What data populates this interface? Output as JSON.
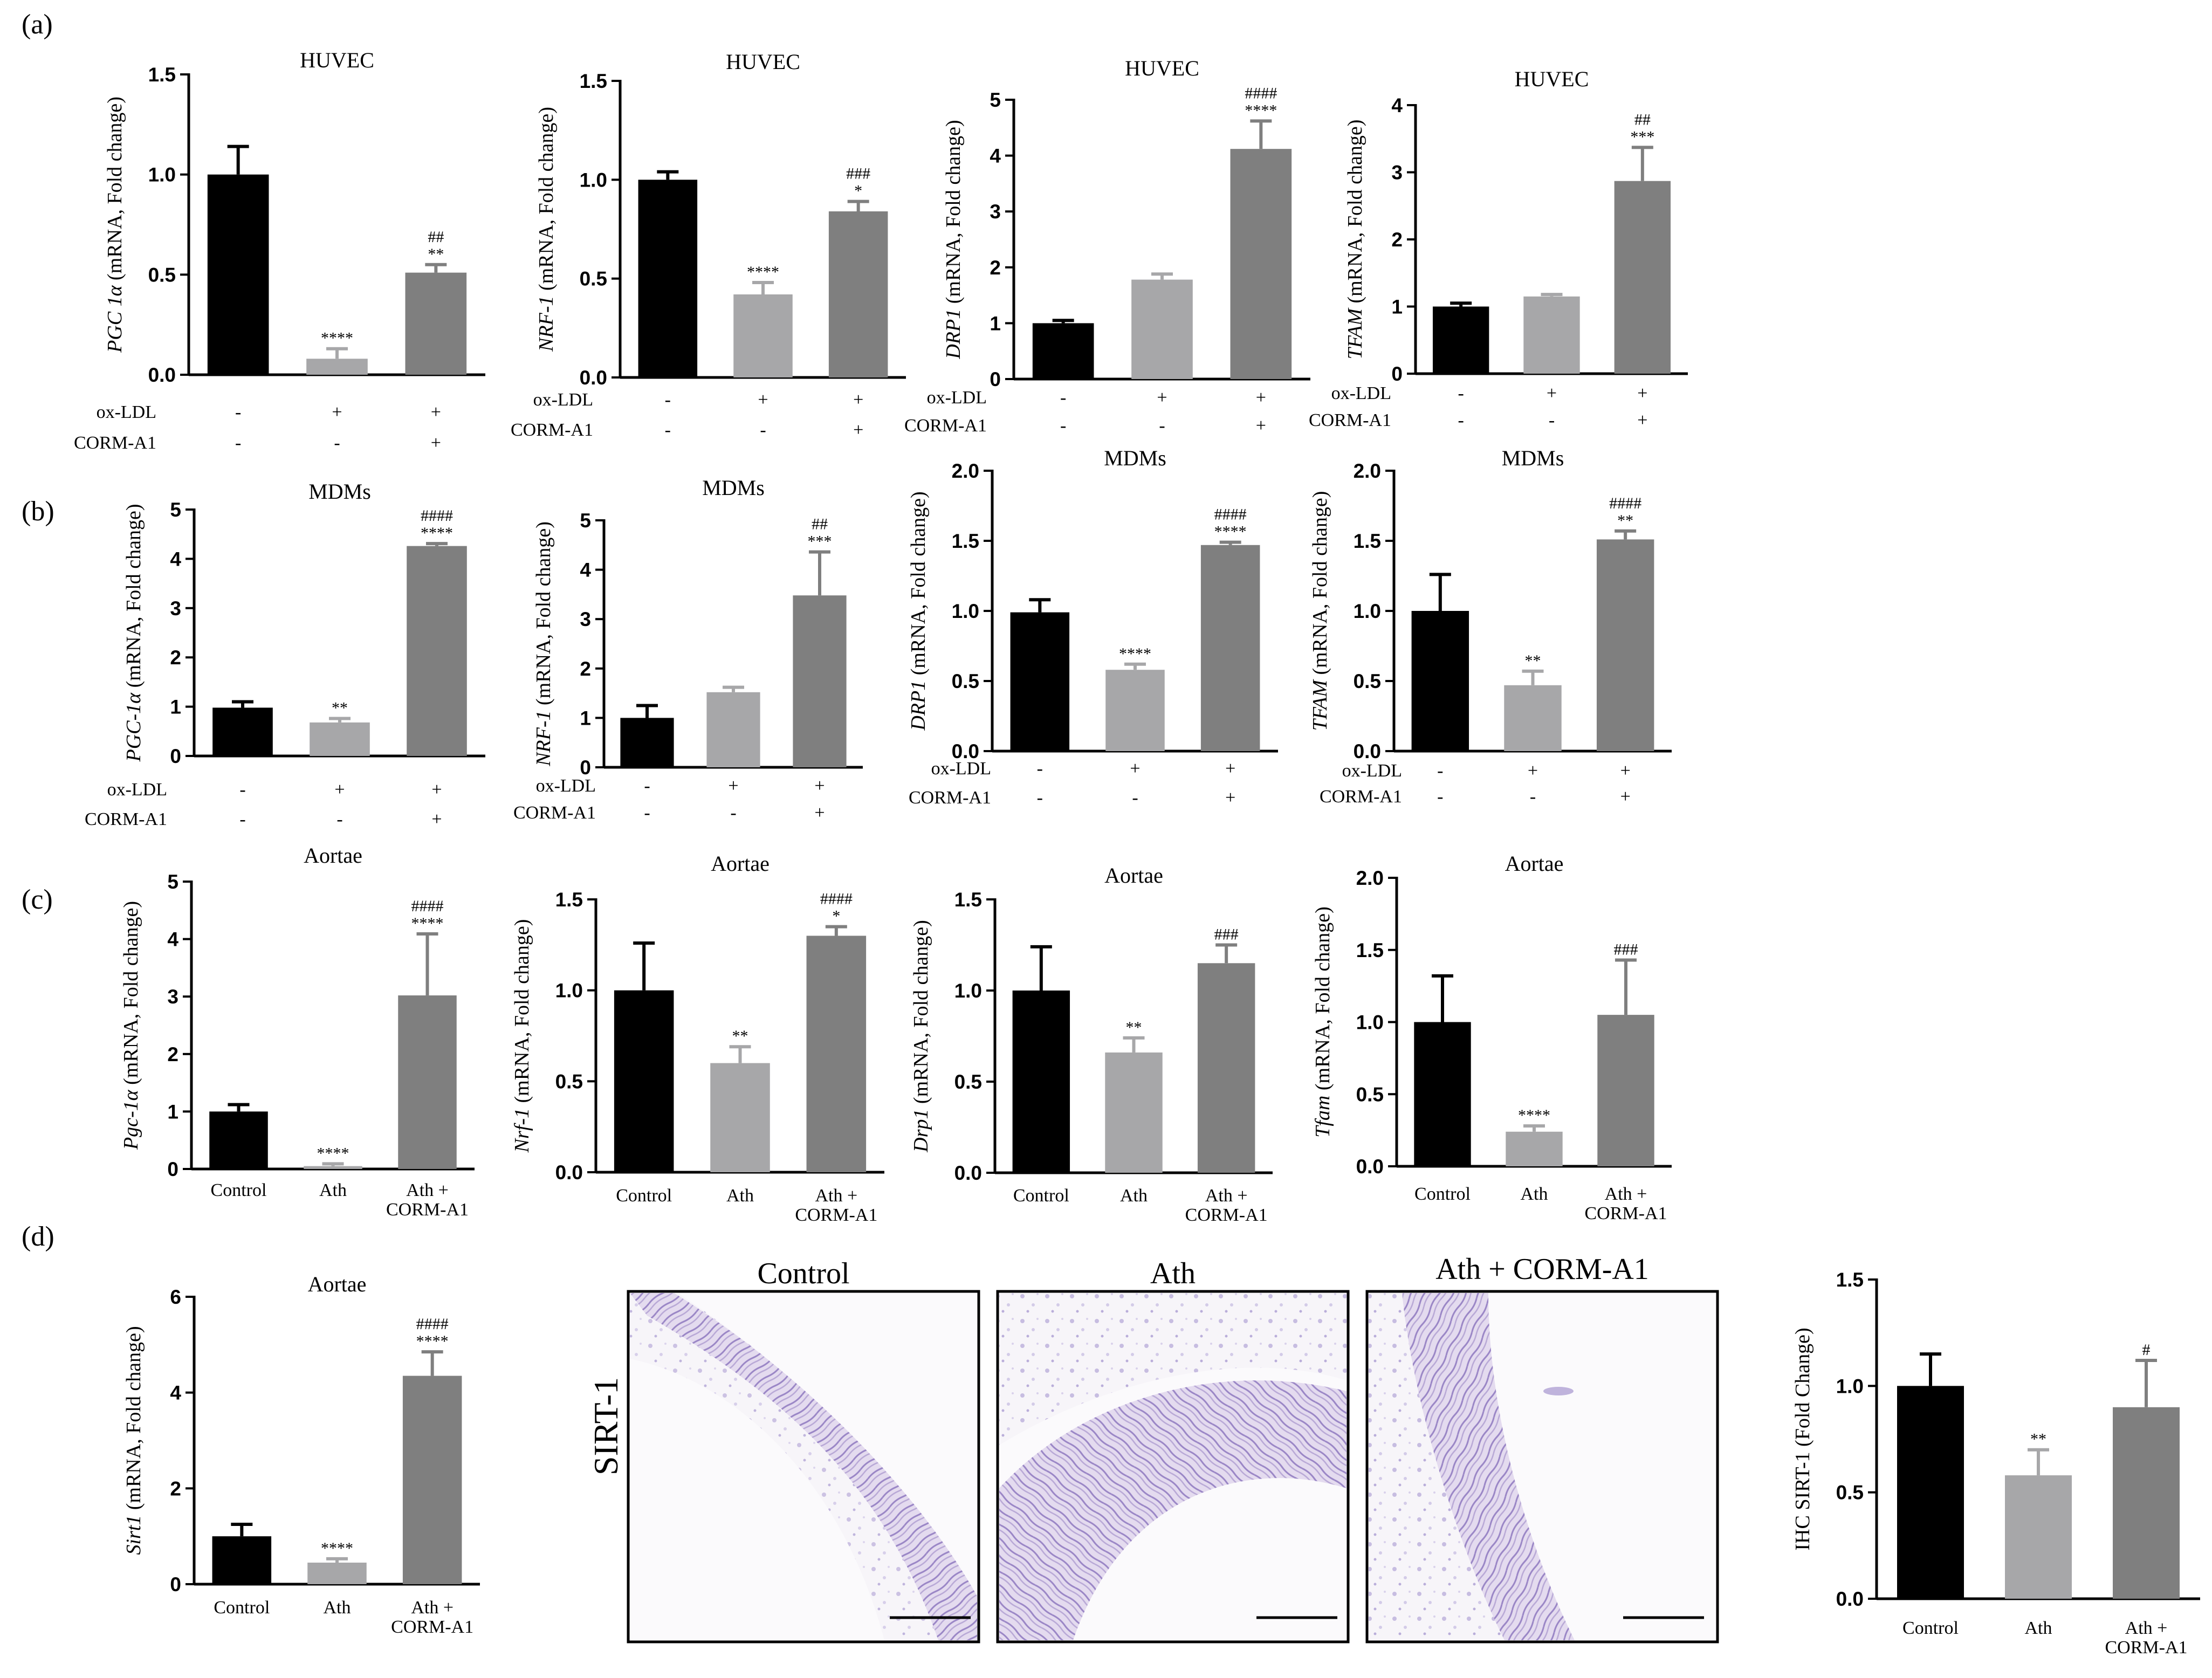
{
  "figure_labels": {
    "a": "(a)",
    "b": "(b)",
    "c": "(c)",
    "d": "(d)"
  },
  "colors": {
    "control": "#000000",
    "ath": "#a7a7a9",
    "corm": "#7f7f7f"
  },
  "histology": {
    "row_label": "SIRT-1",
    "panels": [
      {
        "title": "Control"
      },
      {
        "title": "Ath"
      },
      {
        "title": "Ath + CORM-A1"
      }
    ]
  },
  "chart_data": [
    {
      "id": "a1",
      "type": "bar",
      "title": "HUVEC",
      "ylabel_italic": "PGC 1α",
      "ylabel_rest": " (mRNA, Fold change)",
      "ylim": [
        0,
        1.5
      ],
      "yticks": [
        "0.0",
        "0.5",
        "1.0",
        "1.5"
      ],
      "values": [
        1.0,
        0.08,
        0.51
      ],
      "errors": [
        0.14,
        0.05,
        0.04
      ],
      "annotations": [
        [],
        [
          "****"
        ],
        [
          "**",
          "##"
        ]
      ],
      "treatment_rows": [
        {
          "label": "ox-LDL",
          "signs": [
            "-",
            "+",
            "+"
          ]
        },
        {
          "label": "CORM-A1",
          "signs": [
            "-",
            "-",
            "+"
          ]
        }
      ]
    },
    {
      "id": "a2",
      "type": "bar",
      "title": "HUVEC",
      "ylabel_italic": "NRF-1",
      "ylabel_rest": " (mRNA, Fold change)",
      "ylim": [
        0,
        1.5
      ],
      "yticks": [
        "0.0",
        "0.5",
        "1.0",
        "1.5"
      ],
      "values": [
        1.0,
        0.42,
        0.84
      ],
      "errors": [
        0.04,
        0.06,
        0.05
      ],
      "annotations": [
        [],
        [
          "****"
        ],
        [
          "*",
          "###"
        ]
      ],
      "treatment_rows": [
        {
          "label": "ox-LDL",
          "signs": [
            "-",
            "+",
            "+"
          ]
        },
        {
          "label": "CORM-A1",
          "signs": [
            "-",
            "-",
            "+"
          ]
        }
      ]
    },
    {
      "id": "a3",
      "type": "bar",
      "title": "HUVEC",
      "ylabel_italic": "DRP1",
      "ylabel_rest": " (mRNA, Fold change)",
      "ylim": [
        0,
        5
      ],
      "yticks": [
        "0",
        "1",
        "2",
        "3",
        "4",
        "5"
      ],
      "values": [
        1.0,
        1.78,
        4.12
      ],
      "errors": [
        0.05,
        0.1,
        0.5
      ],
      "annotations": [
        [],
        [],
        [
          "****",
          "####"
        ]
      ],
      "treatment_rows": [
        {
          "label": "ox-LDL",
          "signs": [
            "-",
            "+",
            "+"
          ]
        },
        {
          "label": "CORM-A1",
          "signs": [
            "-",
            "-",
            "+"
          ]
        }
      ]
    },
    {
      "id": "a4",
      "type": "bar",
      "title": "HUVEC",
      "ylabel_italic": "TFAM",
      "ylabel_rest": " (mRNA, Fold change)",
      "ylim": [
        0,
        4
      ],
      "yticks": [
        "0",
        "1",
        "2",
        "3",
        "4"
      ],
      "values": [
        1.0,
        1.15,
        2.87
      ],
      "errors": [
        0.05,
        0.03,
        0.5
      ],
      "annotations": [
        [],
        [],
        [
          "***",
          "##"
        ]
      ],
      "treatment_rows": [
        {
          "label": "ox-LDL",
          "signs": [
            "-",
            "+",
            "+"
          ]
        },
        {
          "label": "CORM-A1",
          "signs": [
            "-",
            "-",
            "+"
          ]
        }
      ]
    },
    {
      "id": "b1",
      "type": "bar",
      "title": "MDMs",
      "ylabel_italic": "PGC-1α",
      "ylabel_rest": " (mRNA, Fold change)",
      "ylim": [
        0,
        5
      ],
      "yticks": [
        "0",
        "1",
        "2",
        "3",
        "4",
        "5"
      ],
      "values": [
        0.98,
        0.68,
        4.26
      ],
      "errors": [
        0.12,
        0.08,
        0.05
      ],
      "annotations": [
        [],
        [
          "**"
        ],
        [
          "****",
          "####"
        ]
      ],
      "treatment_rows": [
        {
          "label": "ox-LDL",
          "signs": [
            "-",
            "+",
            "+"
          ]
        },
        {
          "label": "CORM-A1",
          "signs": [
            "-",
            "-",
            "+"
          ]
        }
      ]
    },
    {
      "id": "b2",
      "type": "bar",
      "title": "MDMs",
      "ylabel_italic": "NRF-1",
      "ylabel_rest": " (mRNA, Fold change)",
      "ylim": [
        0,
        5
      ],
      "yticks": [
        "0",
        "1",
        "2",
        "3",
        "4",
        "5"
      ],
      "values": [
        1.0,
        1.52,
        3.48
      ],
      "errors": [
        0.25,
        0.1,
        0.88
      ],
      "annotations": [
        [],
        [],
        [
          "***",
          "##"
        ]
      ],
      "treatment_rows": [
        {
          "label": "ox-LDL",
          "signs": [
            "-",
            "+",
            "+"
          ]
        },
        {
          "label": "CORM-A1",
          "signs": [
            "-",
            "-",
            "+"
          ]
        }
      ]
    },
    {
      "id": "b3",
      "type": "bar",
      "title": "MDMs",
      "ylabel_italic": "DRP1",
      "ylabel_rest": " (mRNA, Fold change)",
      "ylim": [
        0,
        2.0
      ],
      "yticks": [
        "0.0",
        "0.5",
        "1.0",
        "1.5",
        "2.0"
      ],
      "values": [
        0.99,
        0.58,
        1.47
      ],
      "errors": [
        0.09,
        0.04,
        0.02
      ],
      "annotations": [
        [],
        [
          "****"
        ],
        [
          "****",
          "####"
        ]
      ],
      "treatment_rows": [
        {
          "label": "ox-LDL",
          "signs": [
            "-",
            "+",
            "+"
          ]
        },
        {
          "label": "CORM-A1",
          "signs": [
            "-",
            "-",
            "+"
          ]
        }
      ]
    },
    {
      "id": "b4",
      "type": "bar",
      "title": "MDMs",
      "ylabel_italic": "TFAM",
      "ylabel_rest": " (mRNA, Fold change)",
      "ylim": [
        0,
        2.0
      ],
      "yticks": [
        "0.0",
        "0.5",
        "1.0",
        "1.5",
        "2.0"
      ],
      "values": [
        1.0,
        0.47,
        1.51
      ],
      "errors": [
        0.26,
        0.1,
        0.06
      ],
      "annotations": [
        [],
        [
          "**"
        ],
        [
          "**",
          "####"
        ]
      ],
      "treatment_rows": [
        {
          "label": "ox-LDL",
          "signs": [
            "-",
            "+",
            "+"
          ]
        },
        {
          "label": "CORM-A1",
          "signs": [
            "-",
            "-",
            "+"
          ]
        }
      ]
    },
    {
      "id": "c1",
      "type": "bar",
      "title": "Aortae",
      "ylabel_italic": "Pgc-1α",
      "ylabel_rest": " (mRNA, Fold change)",
      "ylim": [
        0,
        5
      ],
      "yticks": [
        "0",
        "1",
        "2",
        "3",
        "4",
        "5"
      ],
      "values": [
        1.0,
        0.05,
        3.02
      ],
      "errors": [
        0.12,
        0.04,
        1.07
      ],
      "annotations": [
        [],
        [
          "****"
        ],
        [
          "****",
          "####"
        ]
      ],
      "categories": [
        "Control",
        "Ath",
        "Ath +\nCORM-A1"
      ]
    },
    {
      "id": "c2",
      "type": "bar",
      "title": "Aortae",
      "ylabel_italic": "Nrf-1",
      "ylabel_rest": " (mRNA, Fold change)",
      "ylim": [
        0,
        1.5
      ],
      "yticks": [
        "0.0",
        "0.5",
        "1.0",
        "1.5"
      ],
      "values": [
        1.0,
        0.6,
        1.3
      ],
      "errors": [
        0.26,
        0.09,
        0.05
      ],
      "annotations": [
        [],
        [
          "**"
        ],
        [
          "*",
          "####"
        ]
      ],
      "categories": [
        "Control",
        "Ath",
        "Ath +\nCORM-A1"
      ]
    },
    {
      "id": "c3",
      "type": "bar",
      "title": "Aortae",
      "ylabel_italic": "Drp1",
      "ylabel_rest": " (mRNA, Fold change)",
      "ylim": [
        0,
        1.5
      ],
      "yticks": [
        "0.0",
        "0.5",
        "1.0",
        "1.5"
      ],
      "values": [
        1.0,
        0.66,
        1.15
      ],
      "errors": [
        0.24,
        0.08,
        0.1
      ],
      "annotations": [
        [],
        [
          "**"
        ],
        [
          "###"
        ]
      ],
      "categories": [
        "Control",
        "Ath",
        "Ath +\nCORM-A1"
      ]
    },
    {
      "id": "c4",
      "type": "bar",
      "title": "Aortae",
      "ylabel_italic": "Tfam",
      "ylabel_rest": " (mRNA, Fold change)",
      "ylim": [
        0,
        2.0
      ],
      "yticks": [
        "0.0",
        "0.5",
        "1.0",
        "1.5",
        "2.0"
      ],
      "values": [
        1.0,
        0.24,
        1.05
      ],
      "errors": [
        0.32,
        0.04,
        0.38
      ],
      "annotations": [
        [],
        [
          "****"
        ],
        [
          "###"
        ]
      ],
      "categories": [
        "Control",
        "Ath",
        "Ath +\nCORM-A1"
      ]
    },
    {
      "id": "d1",
      "type": "bar",
      "title": "Aortae",
      "ylabel_italic": "Sirt1",
      "ylabel_rest": " (mRNA, Fold change)",
      "ylim": [
        0,
        6
      ],
      "yticks": [
        "0",
        "2",
        "4",
        "6"
      ],
      "values": [
        1.0,
        0.45,
        4.35
      ],
      "errors": [
        0.25,
        0.08,
        0.5
      ],
      "annotations": [
        [],
        [
          "****"
        ],
        [
          "****",
          "####"
        ]
      ],
      "categories": [
        "Control",
        "Ath",
        "Ath +\nCORM-A1"
      ]
    },
    {
      "id": "d2",
      "type": "bar",
      "title": "",
      "ylabel_italic": "",
      "ylabel_rest": "IHC SIRT-1 (Fold Change)",
      "ylim": [
        0,
        1.5
      ],
      "yticks": [
        "0.0",
        "0.5",
        "1.0",
        "1.5"
      ],
      "values": [
        1.0,
        0.58,
        0.9
      ],
      "errors": [
        0.15,
        0.12,
        0.22
      ],
      "annotations": [
        [],
        [
          "**"
        ],
        [
          "#"
        ]
      ],
      "categories": [
        "Control",
        "Ath",
        "Ath +\nCORM-A1"
      ]
    }
  ]
}
